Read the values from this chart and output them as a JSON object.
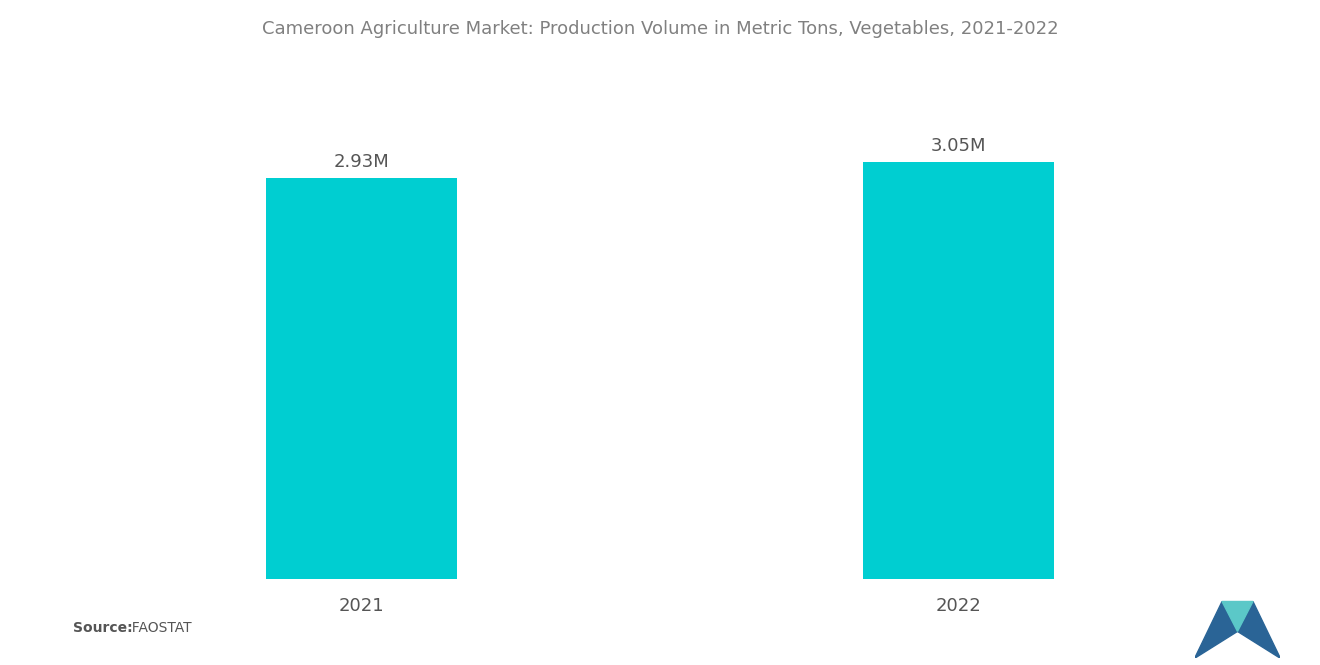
{
  "title": "Cameroon Agriculture Market: Production Volume in Metric Tons, Vegetables, 2021-2022",
  "categories": [
    "2021",
    "2022"
  ],
  "values": [
    2.93,
    3.05
  ],
  "labels": [
    "2.93M",
    "3.05M"
  ],
  "bar_color": "#00CED1",
  "background_color": "#ffffff",
  "title_color": "#808080",
  "label_color": "#555555",
  "tick_color": "#555555",
  "title_fontsize": 13,
  "label_fontsize": 13,
  "tick_fontsize": 13,
  "source_bold": "Source:",
  "source_light": "  FAOSTAT",
  "bar_width": 0.32,
  "xlim": [
    -0.45,
    1.45
  ],
  "ylim": [
    0,
    3.6
  ]
}
